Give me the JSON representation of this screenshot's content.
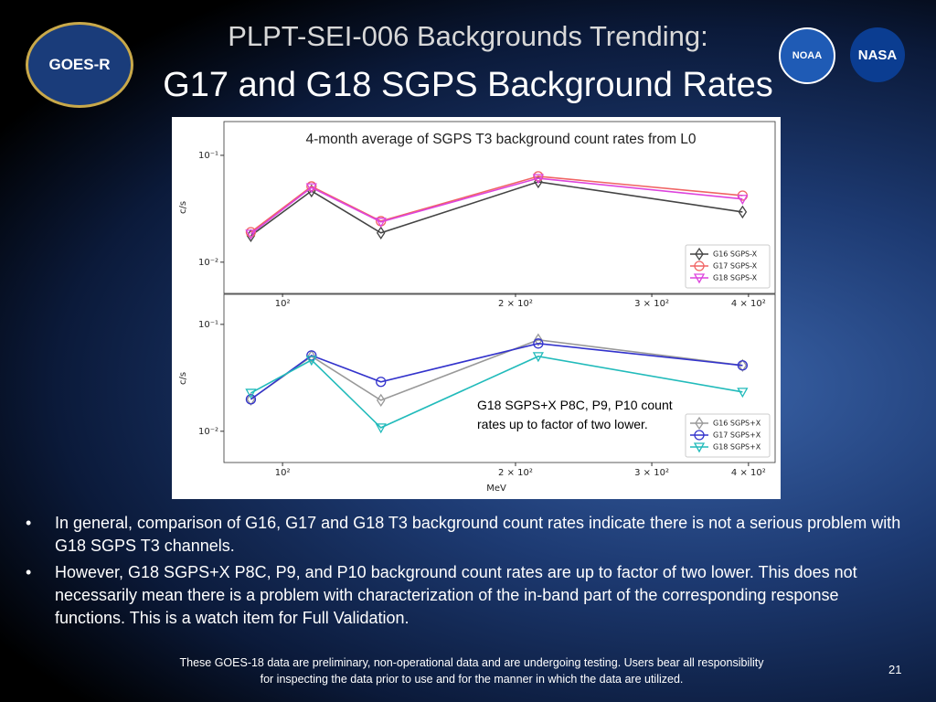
{
  "slide": {
    "title_line1": "PLPT-SEI-006 Backgrounds Trending:",
    "title_line2": "G17 and G18 SGPS Background Rates",
    "logos": [
      "GOES-R",
      "NOAA",
      "NASA"
    ],
    "bullets": [
      "In general, comparison of G16, G17 and G18 T3 background count rates indicate there is not a serious problem with G18 SGPS T3 channels.",
      "However, G18 SGPS+X P8C, P9, and P10 background count rates are up to factor of two lower. This does not necessarily mean there is a problem with characterization of the in-band part of the corresponding response functions. This is a watch item for Full Validation."
    ],
    "footer": "These GOES-18 data are preliminary, non-operational data and are undergoing testing. Users bear all responsibility for inspecting the data prior to use and for the manner in which the data are utilized.",
    "page_number": 21
  },
  "chart_data": [
    {
      "type": "line",
      "title": "4-month average of SGPS T3 background count rates from L0",
      "y_label": "c/s",
      "log_x": true,
      "log_y": true,
      "legend": "lower right",
      "x": [
        91,
        109,
        134,
        214,
        393
      ],
      "xlim": [
        84,
        433
      ],
      "ylim": [
        0.0051,
        0.207
      ],
      "xticks": [
        {
          "value": 100,
          "label": "10²"
        },
        {
          "value": 200,
          "label": "2 × 10²"
        },
        {
          "value": 300,
          "label": "3 × 10²"
        },
        {
          "value": 400,
          "label": "4 × 10²"
        }
      ],
      "yticks": [
        {
          "value": 0.01,
          "label": "10⁻²"
        },
        {
          "value": 0.1,
          "label": "10⁻¹"
        }
      ],
      "series": [
        {
          "name": "G16 SGPS-X",
          "color": "#444444",
          "marker": "diamond",
          "values": [
            0.0177,
            0.0464,
            0.0188,
            0.0565,
            0.0295
          ]
        },
        {
          "name": "G17 SGPS-X",
          "color": "#f06464",
          "marker": "circle",
          "values": [
            0.0191,
            0.0512,
            0.0242,
            0.0636,
            0.042
          ]
        },
        {
          "name": "G18 SGPS-X",
          "color": "#dd44dd",
          "marker": "triangle-down",
          "values": [
            0.0184,
            0.05,
            0.0238,
            0.061,
            0.039
          ]
        }
      ]
    },
    {
      "type": "line",
      "x_label": "MeV",
      "y_label": "c/s",
      "log_x": true,
      "log_y": true,
      "legend": "lower right",
      "annotation": "G18 SGPS+X P8C, P9, P10 count rates up to factor of two lower.",
      "x": [
        91,
        109,
        134,
        214,
        393
      ],
      "xlim": [
        84,
        433
      ],
      "ylim": [
        0.0051,
        0.191
      ],
      "xticks": [
        {
          "value": 100,
          "label": "10²"
        },
        {
          "value": 200,
          "label": "2 × 10²"
        },
        {
          "value": 300,
          "label": "3 × 10²"
        },
        {
          "value": 400,
          "label": "4 × 10²"
        }
      ],
      "yticks": [
        {
          "value": 0.01,
          "label": "10⁻²"
        },
        {
          "value": 0.1,
          "label": "10⁻¹"
        }
      ],
      "series": [
        {
          "name": "G16 SGPS+X",
          "color": "#999999",
          "marker": "diamond",
          "values": [
            0.0199,
            0.0502,
            0.0195,
            0.0716,
            0.0413
          ]
        },
        {
          "name": "G17 SGPS+X",
          "color": "#3333cc",
          "marker": "circle",
          "values": [
            0.0199,
            0.0512,
            0.029,
            0.0662,
            0.0413
          ]
        },
        {
          "name": "G18 SGPS+X",
          "color": "#22bbbb",
          "marker": "triangle-down",
          "values": [
            0.0228,
            0.0464,
            0.0108,
            0.0502,
            0.0233
          ]
        }
      ]
    }
  ]
}
